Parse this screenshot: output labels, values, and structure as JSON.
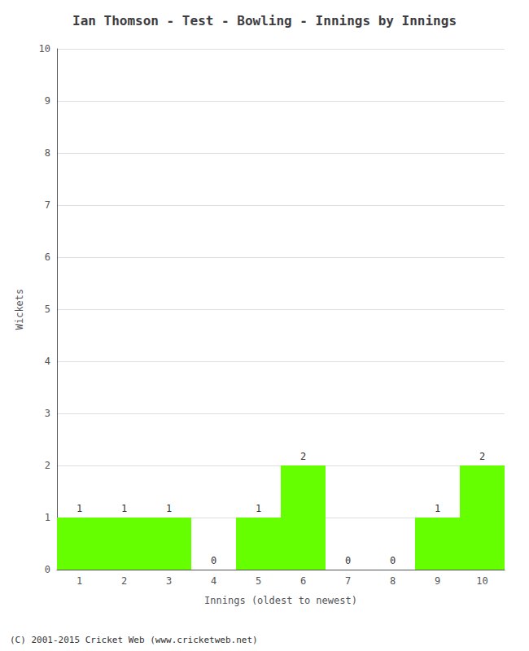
{
  "chart_data": {
    "type": "bar",
    "title": "Ian Thomson - Test - Bowling - Innings by Innings",
    "xlabel": "Innings (oldest to newest)",
    "ylabel": "Wickets",
    "categories": [
      "1",
      "2",
      "3",
      "4",
      "5",
      "6",
      "7",
      "8",
      "9",
      "10"
    ],
    "values": [
      1,
      1,
      1,
      0,
      1,
      2,
      0,
      0,
      1,
      2
    ],
    "color": "#66ff00",
    "ylim": [
      0,
      10
    ],
    "yticks": [
      0,
      1,
      2,
      3,
      4,
      5,
      6,
      7,
      8,
      9,
      10
    ],
    "grid": true,
    "data_labels": true,
    "annotations": [
      "(C) 2001-2015 Cricket Web (www.cricketweb.net)"
    ]
  }
}
